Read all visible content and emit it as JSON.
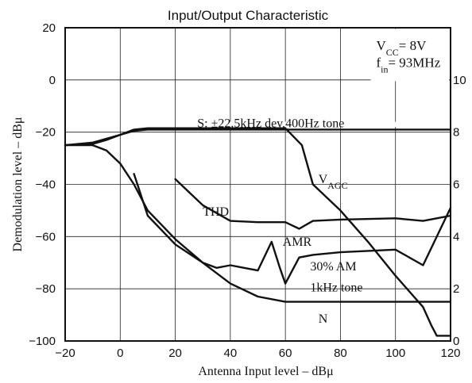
{
  "chart_data": {
    "type": "line",
    "title": "Input/Output Characteristic",
    "xlabel": "Antenna Input level  –  dBμ",
    "ylabel": "Demodulation level  –  dBμ",
    "xlim": [
      -20,
      120
    ],
    "ylim": [
      -100,
      20
    ],
    "y2lim": [
      0,
      12
    ],
    "x_ticks": [
      "−20",
      "0",
      "20",
      "40",
      "60",
      "80",
      "100",
      "120"
    ],
    "y_ticks": [
      "20",
      "0",
      "−20",
      "−40",
      "−60",
      "−80",
      "−100"
    ],
    "y2_ticks": [
      "10",
      "8",
      "6",
      "4",
      "2",
      "0"
    ],
    "grid": true,
    "conditions": {
      "vcc_main": "V",
      "vcc_sub": "CC",
      "vcc_value": "= 8V",
      "fin_main": "f",
      "fin_sub": "in",
      "fin_value": "= 93MHz"
    },
    "annotations": {
      "signal": "S: ±22.5kHz dev,400Hz tone",
      "vagc_main": "V",
      "vagc_sub": "AGC",
      "thd": "THD",
      "amr": "AMR",
      "am_line1": "30% AM",
      "am_line2": "1kHz tone",
      "noise": "N"
    },
    "series": [
      {
        "key": "S",
        "axis": "left",
        "x": [
          -20,
          -10,
          -5,
          0,
          5,
          10,
          20,
          40,
          60,
          80,
          100,
          120
        ],
        "y": [
          -25,
          -24.5,
          -23,
          -21,
          -19.5,
          -19,
          -19,
          -19,
          -19,
          -19,
          -19,
          -19
        ]
      },
      {
        "key": "N",
        "axis": "left",
        "x": [
          -20,
          -10,
          -5,
          0,
          5,
          10,
          20,
          30,
          40,
          50,
          60,
          80,
          100,
          120
        ],
        "y": [
          -25,
          -25,
          -27,
          -32,
          -40,
          -50,
          -61,
          -70,
          -78,
          -83,
          -85,
          -85,
          -85,
          -85
        ]
      },
      {
        "key": "THD",
        "axis": "left",
        "x": [
          20,
          30,
          40,
          50,
          60,
          65,
          70,
          80,
          100,
          110,
          115,
          120
        ],
        "y": [
          -38,
          -48,
          -54,
          -54.5,
          -54.5,
          -57,
          -54,
          -53.5,
          -53,
          -54,
          -53,
          -52
        ]
      },
      {
        "key": "AMR",
        "axis": "left",
        "x": [
          5,
          10,
          20,
          30,
          35,
          40,
          45,
          50,
          55,
          58,
          60,
          65,
          70,
          80,
          100,
          110,
          120
        ],
        "y": [
          -36,
          -52,
          -63,
          -70,
          -72,
          -71,
          -72,
          -73,
          -62,
          -72,
          -78,
          -68,
          -67,
          -66,
          -65,
          -71,
          -49
        ]
      },
      {
        "key": "VAGC",
        "axis": "right",
        "x": [
          -20,
          -10,
          0,
          5,
          10,
          40,
          60,
          66,
          70,
          80,
          90,
          100,
          110,
          113,
          115,
          120
        ],
        "y2": [
          7.5,
          7.6,
          7.9,
          8.1,
          8.15,
          8.15,
          8.15,
          7.5,
          6.0,
          5.0,
          3.8,
          2.5,
          1.3,
          0.6,
          0.2,
          0.2
        ]
      }
    ]
  }
}
